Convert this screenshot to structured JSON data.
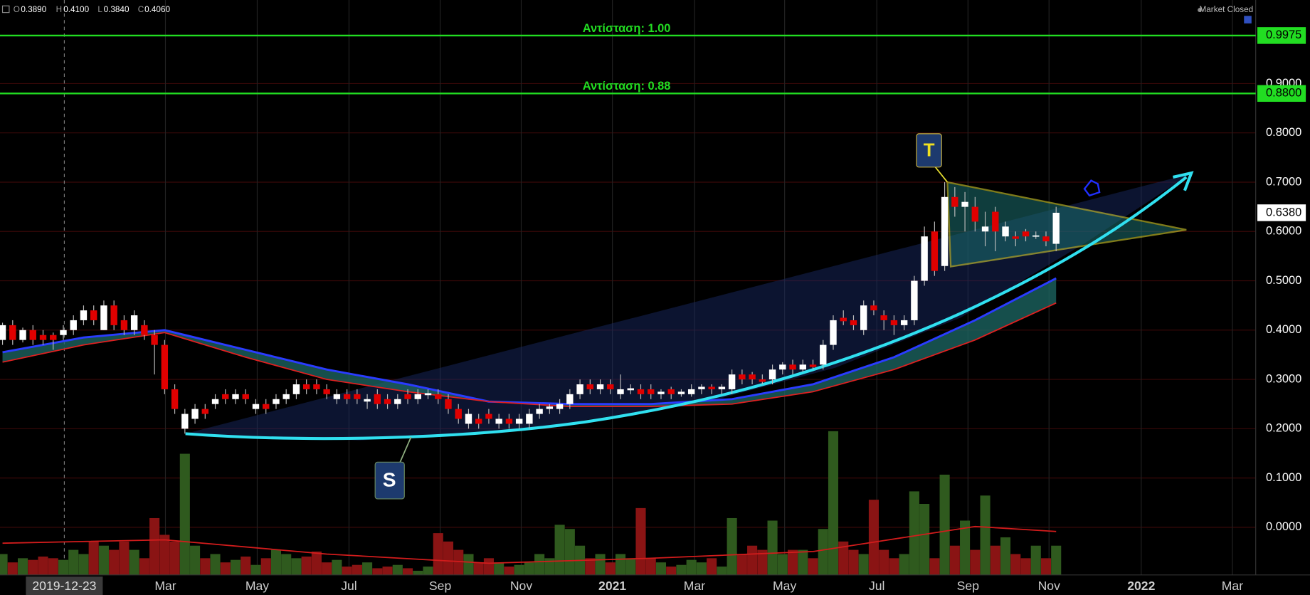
{
  "header": {
    "ohlc": [
      {
        "key": "O",
        "value": "0.3890"
      },
      {
        "key": "H",
        "value": "0.4100"
      },
      {
        "key": "L",
        "value": "0.3840"
      },
      {
        "key": "C",
        "value": "0.4060"
      }
    ],
    "status": "Market Closed"
  },
  "chart_data": {
    "type": "candlestick",
    "candles": {
      "open": [
        0.38,
        0.41,
        0.38,
        0.4,
        0.39,
        0.39,
        0.39,
        0.4,
        0.42,
        0.44,
        0.4,
        0.45,
        0.42,
        0.4,
        0.41,
        0.39,
        0.37,
        0.28,
        0.2,
        0.22,
        0.24,
        0.25,
        0.27,
        0.26,
        0.27,
        0.24,
        0.25,
        0.25,
        0.26,
        0.27,
        0.29,
        0.29,
        0.28,
        0.26,
        0.27,
        0.27,
        0.255,
        0.27,
        0.26,
        0.25,
        0.27,
        0.26,
        0.268,
        0.27,
        0.26,
        0.24,
        0.21,
        0.22,
        0.23,
        0.21,
        0.22,
        0.21,
        0.21,
        0.23,
        0.24,
        0.24,
        0.25,
        0.27,
        0.29,
        0.28,
        0.29,
        0.27,
        0.278,
        0.28,
        0.28,
        0.27,
        0.28,
        0.27,
        0.27,
        0.28,
        0.285,
        0.28,
        0.28,
        0.31,
        0.31,
        0.3,
        0.3,
        0.32,
        0.33,
        0.32,
        0.33,
        0.33,
        0.37,
        0.425,
        0.42,
        0.4,
        0.45,
        0.43,
        0.42,
        0.41,
        0.42,
        0.5,
        0.6,
        0.53,
        0.67,
        0.65,
        0.65,
        0.6,
        0.64,
        0.59,
        0.59,
        0.6,
        0.59,
        0.59,
        0.575
      ],
      "high": [
        0.415,
        0.42,
        0.405,
        0.41,
        0.4,
        0.395,
        0.41,
        0.43,
        0.45,
        0.45,
        0.46,
        0.46,
        0.43,
        0.44,
        0.42,
        0.4,
        0.38,
        0.29,
        0.24,
        0.25,
        0.25,
        0.27,
        0.28,
        0.28,
        0.28,
        0.26,
        0.26,
        0.27,
        0.28,
        0.3,
        0.3,
        0.3,
        0.29,
        0.28,
        0.28,
        0.28,
        0.27,
        0.28,
        0.27,
        0.27,
        0.28,
        0.28,
        0.28,
        0.28,
        0.27,
        0.25,
        0.24,
        0.23,
        0.24,
        0.23,
        0.23,
        0.23,
        0.24,
        0.25,
        0.25,
        0.26,
        0.28,
        0.3,
        0.3,
        0.3,
        0.3,
        0.31,
        0.29,
        0.29,
        0.29,
        0.28,
        0.285,
        0.28,
        0.29,
        0.29,
        0.29,
        0.29,
        0.32,
        0.32,
        0.315,
        0.31,
        0.33,
        0.335,
        0.34,
        0.34,
        0.34,
        0.38,
        0.43,
        0.44,
        0.43,
        0.46,
        0.46,
        0.44,
        0.43,
        0.43,
        0.51,
        0.61,
        0.62,
        0.7,
        0.69,
        0.68,
        0.67,
        0.64,
        0.65,
        0.62,
        0.6,
        0.605,
        0.6,
        0.6,
        0.65
      ],
      "low": [
        0.37,
        0.37,
        0.375,
        0.37,
        0.37,
        0.36,
        0.38,
        0.39,
        0.41,
        0.41,
        0.4,
        0.4,
        0.39,
        0.39,
        0.38,
        0.31,
        0.27,
        0.23,
        0.19,
        0.21,
        0.22,
        0.24,
        0.25,
        0.25,
        0.25,
        0.23,
        0.23,
        0.24,
        0.25,
        0.26,
        0.27,
        0.27,
        0.26,
        0.25,
        0.25,
        0.25,
        0.24,
        0.24,
        0.24,
        0.24,
        0.25,
        0.25,
        0.26,
        0.25,
        0.23,
        0.21,
        0.2,
        0.2,
        0.21,
        0.2,
        0.2,
        0.2,
        0.2,
        0.22,
        0.23,
        0.23,
        0.24,
        0.26,
        0.27,
        0.27,
        0.27,
        0.26,
        0.27,
        0.26,
        0.26,
        0.26,
        0.26,
        0.265,
        0.265,
        0.27,
        0.27,
        0.27,
        0.27,
        0.29,
        0.29,
        0.29,
        0.29,
        0.31,
        0.31,
        0.315,
        0.32,
        0.32,
        0.36,
        0.41,
        0.4,
        0.39,
        0.43,
        0.4,
        0.39,
        0.4,
        0.41,
        0.49,
        0.51,
        0.52,
        0.63,
        0.6,
        0.6,
        0.57,
        0.56,
        0.58,
        0.57,
        0.58,
        0.585,
        0.57,
        0.56
      ],
      "close": [
        0.41,
        0.38,
        0.4,
        0.38,
        0.38,
        0.38,
        0.4,
        0.42,
        0.44,
        0.42,
        0.45,
        0.41,
        0.4,
        0.43,
        0.39,
        0.37,
        0.28,
        0.24,
        0.23,
        0.24,
        0.23,
        0.26,
        0.26,
        0.27,
        0.26,
        0.25,
        0.24,
        0.26,
        0.27,
        0.29,
        0.28,
        0.28,
        0.27,
        0.27,
        0.26,
        0.26,
        0.26,
        0.25,
        0.25,
        0.26,
        0.26,
        0.27,
        0.272,
        0.26,
        0.24,
        0.22,
        0.23,
        0.21,
        0.22,
        0.22,
        0.21,
        0.22,
        0.23,
        0.24,
        0.245,
        0.25,
        0.27,
        0.29,
        0.28,
        0.29,
        0.28,
        0.28,
        0.282,
        0.27,
        0.27,
        0.275,
        0.27,
        0.275,
        0.28,
        0.285,
        0.28,
        0.285,
        0.31,
        0.3,
        0.3,
        0.295,
        0.32,
        0.33,
        0.32,
        0.33,
        0.325,
        0.37,
        0.42,
        0.418,
        0.41,
        0.45,
        0.44,
        0.42,
        0.41,
        0.42,
        0.5,
        0.59,
        0.52,
        0.67,
        0.65,
        0.66,
        0.62,
        0.61,
        0.6,
        0.61,
        0.585,
        0.59,
        0.592,
        0.58,
        0.638
      ]
    },
    "volume": [
      25,
      15,
      20,
      18,
      22,
      20,
      18,
      30,
      25,
      40,
      35,
      30,
      40,
      30,
      20,
      68,
      48,
      40,
      145,
      35,
      20,
      25,
      15,
      18,
      22,
      12,
      20,
      30,
      25,
      20,
      22,
      28,
      15,
      18,
      10,
      12,
      15,
      8,
      10,
      12,
      8,
      5,
      10,
      50,
      40,
      30,
      25,
      15,
      20,
      15,
      10,
      12,
      15,
      25,
      20,
      60,
      55,
      35,
      20,
      25,
      15,
      25,
      20,
      80,
      20,
      15,
      10,
      12,
      18,
      15,
      20,
      10,
      68,
      25,
      35,
      30,
      65,
      25,
      30,
      30,
      20,
      55,
      172,
      40,
      30,
      25,
      90,
      30,
      20,
      25,
      100,
      85,
      20,
      120,
      35,
      65,
      30,
      95,
      35,
      45,
      25,
      20,
      35,
      20,
      35
    ],
    "volume_ylim": [
      0,
      688
    ],
    "volume_ma": {
      "color": "#d21c1c",
      "x": [
        0,
        16,
        32,
        48,
        64,
        80,
        96,
        104
      ],
      "values": [
        38,
        42,
        25,
        14,
        20,
        28,
        58,
        52
      ]
    },
    "moving_averages": [
      {
        "color": "#2a3cff",
        "x": [
          0,
          8,
          16,
          24,
          32,
          40,
          48,
          56,
          64,
          72,
          80,
          88,
          96,
          104
        ],
        "values": [
          0.355,
          0.385,
          0.4,
          0.36,
          0.32,
          0.29,
          0.255,
          0.25,
          0.25,
          0.26,
          0.29,
          0.345,
          0.42,
          0.505
        ]
      },
      {
        "color": "#e02020",
        "x": [
          0,
          8,
          16,
          24,
          32,
          40,
          48,
          56,
          64,
          72,
          80,
          88,
          96,
          104
        ],
        "values": [
          0.335,
          0.37,
          0.395,
          0.345,
          0.3,
          0.275,
          0.255,
          0.245,
          0.245,
          0.25,
          0.275,
          0.32,
          0.38,
          0.455
        ]
      }
    ],
    "up_color": "#ffffff",
    "down_color": "#e00000",
    "up_volume_color": "#2f5a1e",
    "down_volume_color": "#8a1414",
    "xlim": [
      -0.25,
      123.7
    ],
    "ylim": [
      -0.0966,
      1.0695
    ],
    "xticks": [
      {
        "value": 16.08,
        "label": "Mar"
      },
      {
        "value": 25.14,
        "label": "May"
      },
      {
        "value": 34.2,
        "label": "Jul"
      },
      {
        "value": 43.2,
        "label": "Sep"
      },
      {
        "value": 51.2,
        "label": "Nov"
      },
      {
        "value": 60.2,
        "label": "2021",
        "bold": true
      },
      {
        "value": 68.3,
        "label": "Mar"
      },
      {
        "value": 77.2,
        "label": "May"
      },
      {
        "value": 86.3,
        "label": "Jul"
      },
      {
        "value": 95.3,
        "label": "Sep"
      },
      {
        "value": 103.3,
        "label": "Nov"
      },
      {
        "value": 112.4,
        "label": "2022",
        "bold": true
      },
      {
        "value": 121.4,
        "label": "Mar"
      }
    ],
    "yticks": [
      {
        "value": 0,
        "label": "0.0000"
      },
      {
        "value": 0.1,
        "label": "0.1000"
      },
      {
        "value": 0.2,
        "label": "0.2000"
      },
      {
        "value": 0.3,
        "label": "0.3000"
      },
      {
        "value": 0.4,
        "label": "0.4000"
      },
      {
        "value": 0.5,
        "label": "0.5000"
      },
      {
        "value": 0.6,
        "label": "0.6000"
      },
      {
        "value": 0.7,
        "label": "0.7000"
      },
      {
        "value": 0.8,
        "label": "0.8000"
      },
      {
        "value": 0.9,
        "label": "0.9000"
      }
    ],
    "crosshair": {
      "value": 6.1,
      "label": "2019-12-23"
    },
    "levels": [
      {
        "value": 0.9975,
        "label": "0.9975",
        "text": "Αντίσταση: 1.00",
        "color": "#22dd22"
      },
      {
        "value": 0.88,
        "label": "0.8800",
        "text": "Αντίσταση: 0.88",
        "color": "#22dd22"
      }
    ],
    "last_price": {
      "value": 0.638,
      "label": "0.6380"
    },
    "callouts": [
      "T",
      "S"
    ]
  }
}
